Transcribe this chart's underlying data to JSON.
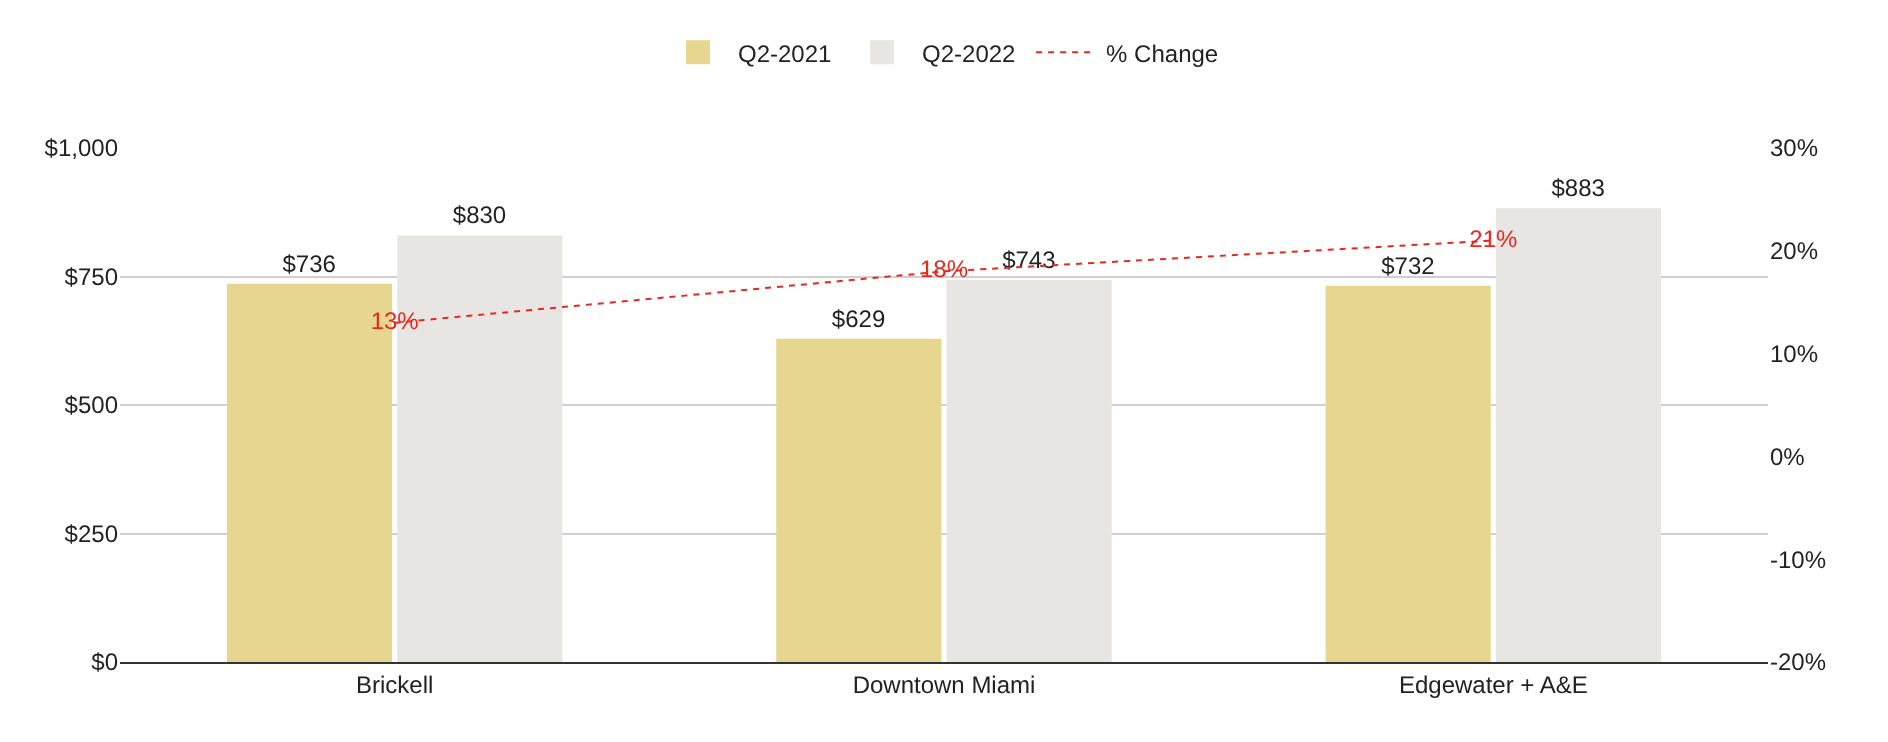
{
  "chart_data": {
    "type": "bar",
    "categories": [
      "Brickell",
      "Downtown Miami",
      "Edgewater + A&E"
    ],
    "series": [
      {
        "name": "Q2-2021",
        "color": "#e6d690",
        "values": [
          736,
          629,
          732
        ],
        "value_labels": [
          "$736",
          "$629",
          "$732"
        ]
      },
      {
        "name": "Q2-2022",
        "color": "#e8e6e3",
        "values": [
          830,
          743,
          883
        ],
        "value_labels": [
          "$830",
          "$743",
          "$883"
        ]
      },
      {
        "name": "% Change",
        "type": "line",
        "axis": "y2",
        "color": "#e8271f",
        "line_style": "dotted",
        "values": [
          13,
          18,
          21
        ],
        "value_labels": [
          "13%",
          "18%",
          "21%"
        ]
      }
    ],
    "ylim": [
      0,
      1000
    ],
    "yticks": [
      {
        "value": 0,
        "label": "$0"
      },
      {
        "value": 250,
        "label": "$250"
      },
      {
        "value": 500,
        "label": "$500"
      },
      {
        "value": 750,
        "label": "$750"
      },
      {
        "value": 1000,
        "label": "$1,000"
      }
    ],
    "y2lim": [
      -20,
      30
    ],
    "y2ticks": [
      {
        "value": -20,
        "label": "-20%"
      },
      {
        "value": -10,
        "label": "-10%"
      },
      {
        "value": 0,
        "label": "0%"
      },
      {
        "value": 10,
        "label": "10%"
      },
      {
        "value": 20,
        "label": "20%"
      },
      {
        "value": 30,
        "label": "30%"
      }
    ],
    "grid": "y",
    "legend": "top"
  }
}
